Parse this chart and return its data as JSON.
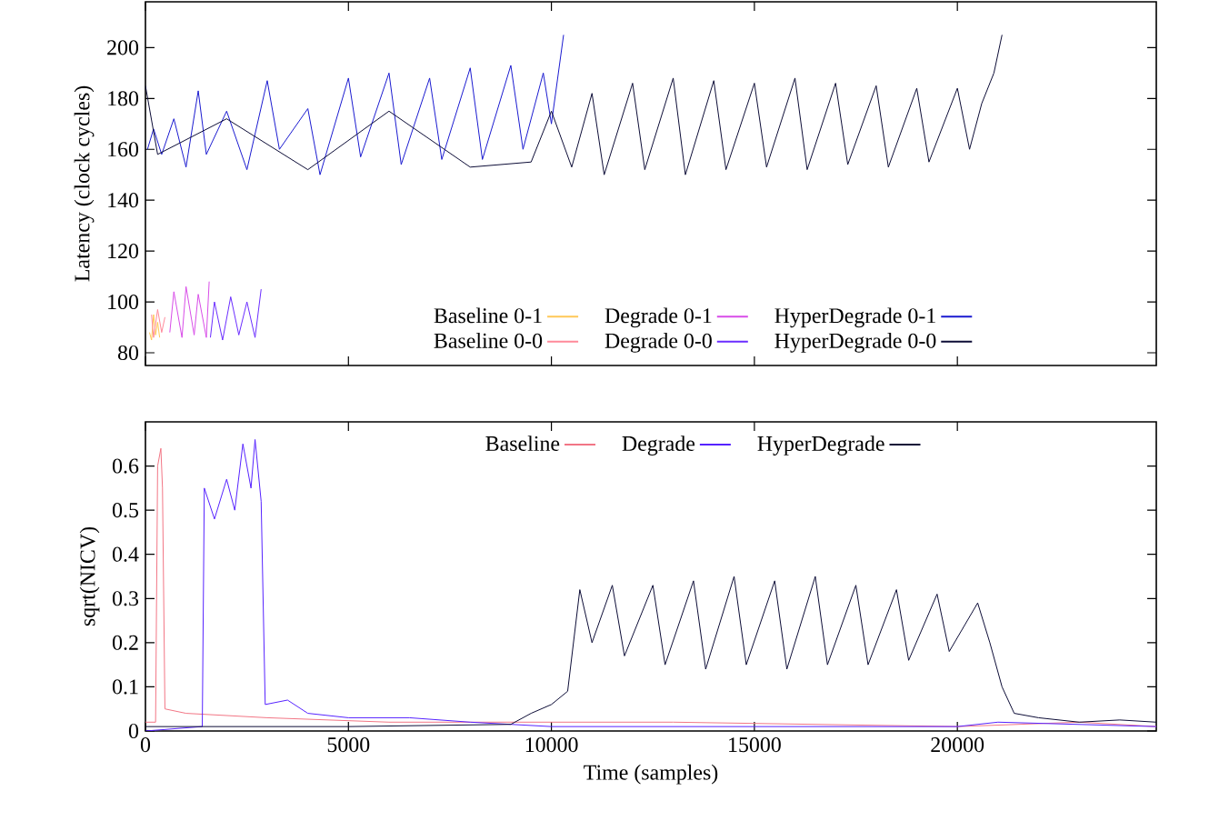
{
  "chart_data": [
    {
      "type": "line",
      "ylabel": "Latency (clock cycles)",
      "xlim": [
        0,
        24900
      ],
      "ylim": [
        75,
        218
      ],
      "xticks": [
        0,
        5000,
        10000,
        15000,
        20000
      ],
      "yticks": [
        80,
        100,
        120,
        140,
        160,
        180,
        200
      ],
      "tick_labels": "y",
      "legend": "bottom",
      "grid": false,
      "marker": "none",
      "line_style": "solid",
      "series": [
        {
          "name": "Baseline 0-1",
          "color": "#ffc857",
          "x": [
            100,
            150,
            200,
            250,
            300,
            350
          ],
          "values": [
            88,
            85,
            95,
            87,
            92,
            86
          ]
        },
        {
          "name": "Baseline 0-0",
          "color": "#ff8a9a",
          "x": [
            150,
            200,
            300,
            400,
            480
          ],
          "values": [
            95,
            86,
            97,
            88,
            94
          ]
        },
        {
          "name": "Degrade 0-1",
          "color": "#d84ce8",
          "x": [
            600,
            700,
            900,
            1000,
            1200,
            1300,
            1500,
            1570
          ],
          "values": [
            88,
            104,
            86,
            106,
            87,
            103,
            86,
            108
          ]
        },
        {
          "name": "Degrade 0-0",
          "color": "#6a2cff",
          "x": [
            1600,
            1700,
            1900,
            2100,
            2300,
            2500,
            2700,
            2850
          ],
          "values": [
            86,
            100,
            85,
            102,
            87,
            100,
            86,
            105
          ]
        },
        {
          "name": "HyperDegrade 0-1",
          "color": "#1a1ad0",
          "x": [
            50,
            200,
            400,
            700,
            1000,
            1300,
            1500,
            2000,
            2500,
            3000,
            3300,
            4000,
            4300,
            5000,
            5300,
            6000,
            6300,
            7000,
            7300,
            8000,
            8300,
            9000,
            9300,
            9800,
            10000,
            10300
          ],
          "values": [
            160,
            168,
            158,
            172,
            153,
            183,
            158,
            175,
            152,
            187,
            160,
            176,
            150,
            188,
            157,
            190,
            154,
            188,
            156,
            192,
            156,
            193,
            160,
            190,
            170,
            205
          ]
        },
        {
          "name": "HyperDegrade 0-0",
          "color": "#0c0c36",
          "x": [
            0,
            300,
            2000,
            4000,
            6000,
            8000,
            9500,
            10000,
            10500,
            11000,
            11300,
            12000,
            12300,
            13000,
            13300,
            14000,
            14300,
            15000,
            15300,
            16000,
            16300,
            17000,
            17300,
            18000,
            18300,
            19000,
            19300,
            20000,
            20300,
            20600,
            20900,
            21100
          ],
          "values": [
            185,
            158,
            172,
            152,
            175,
            153,
            155,
            175,
            153,
            182,
            150,
            186,
            152,
            188,
            150,
            187,
            152,
            186,
            153,
            188,
            152,
            186,
            154,
            185,
            153,
            184,
            155,
            184,
            160,
            178,
            190,
            205
          ]
        }
      ]
    },
    {
      "type": "line",
      "xlabel": "Time (samples)",
      "ylabel": "sqrt(NICV)",
      "xlim": [
        0,
        24900
      ],
      "ylim": [
        0,
        0.7
      ],
      "xticks": [
        0,
        5000,
        10000,
        15000,
        20000
      ],
      "yticks": [
        0,
        0.1,
        0.2,
        0.3,
        0.4,
        0.5,
        0.6
      ],
      "legend": "top",
      "grid": false,
      "marker": "none",
      "line_style": "solid",
      "series": [
        {
          "name": "Baseline",
          "color": "#f27585",
          "x": [
            0,
            250,
            300,
            380,
            420,
            480,
            1000,
            3000,
            6000,
            10000,
            13000,
            20000,
            23000,
            24900
          ],
          "values": [
            0.02,
            0.02,
            0.6,
            0.64,
            0.55,
            0.05,
            0.04,
            0.03,
            0.02,
            0.02,
            0.02,
            0.01,
            0.02,
            0.01
          ]
        },
        {
          "name": "Degrade",
          "color": "#5522ff",
          "x": [
            0,
            1400,
            1450,
            1700,
            2000,
            2200,
            2400,
            2600,
            2700,
            2850,
            2950,
            3500,
            4000,
            5000,
            6500,
            8000,
            10000,
            15000,
            20000,
            21000,
            24900
          ],
          "values": [
            0,
            0.01,
            0.55,
            0.48,
            0.57,
            0.5,
            0.65,
            0.55,
            0.66,
            0.52,
            0.06,
            0.07,
            0.04,
            0.03,
            0.03,
            0.02,
            0.01,
            0.01,
            0.01,
            0.02,
            0.01
          ]
        },
        {
          "name": "HyperDegrade",
          "color": "#0c0c36",
          "x": [
            0,
            5000,
            9000,
            9500,
            10000,
            10400,
            10700,
            11000,
            11500,
            11800,
            12500,
            12800,
            13500,
            13800,
            14500,
            14800,
            15500,
            15800,
            16500,
            16800,
            17500,
            17800,
            18500,
            18800,
            19500,
            19800,
            20500,
            20800,
            21100,
            21400,
            22000,
            23000,
            24000,
            24900
          ],
          "values": [
            0.01,
            0.01,
            0.015,
            0.04,
            0.06,
            0.09,
            0.32,
            0.2,
            0.33,
            0.17,
            0.33,
            0.15,
            0.34,
            0.14,
            0.35,
            0.15,
            0.34,
            0.14,
            0.35,
            0.15,
            0.33,
            0.15,
            0.32,
            0.16,
            0.31,
            0.18,
            0.29,
            0.2,
            0.1,
            0.04,
            0.03,
            0.02,
            0.025,
            0.02
          ]
        }
      ]
    }
  ]
}
